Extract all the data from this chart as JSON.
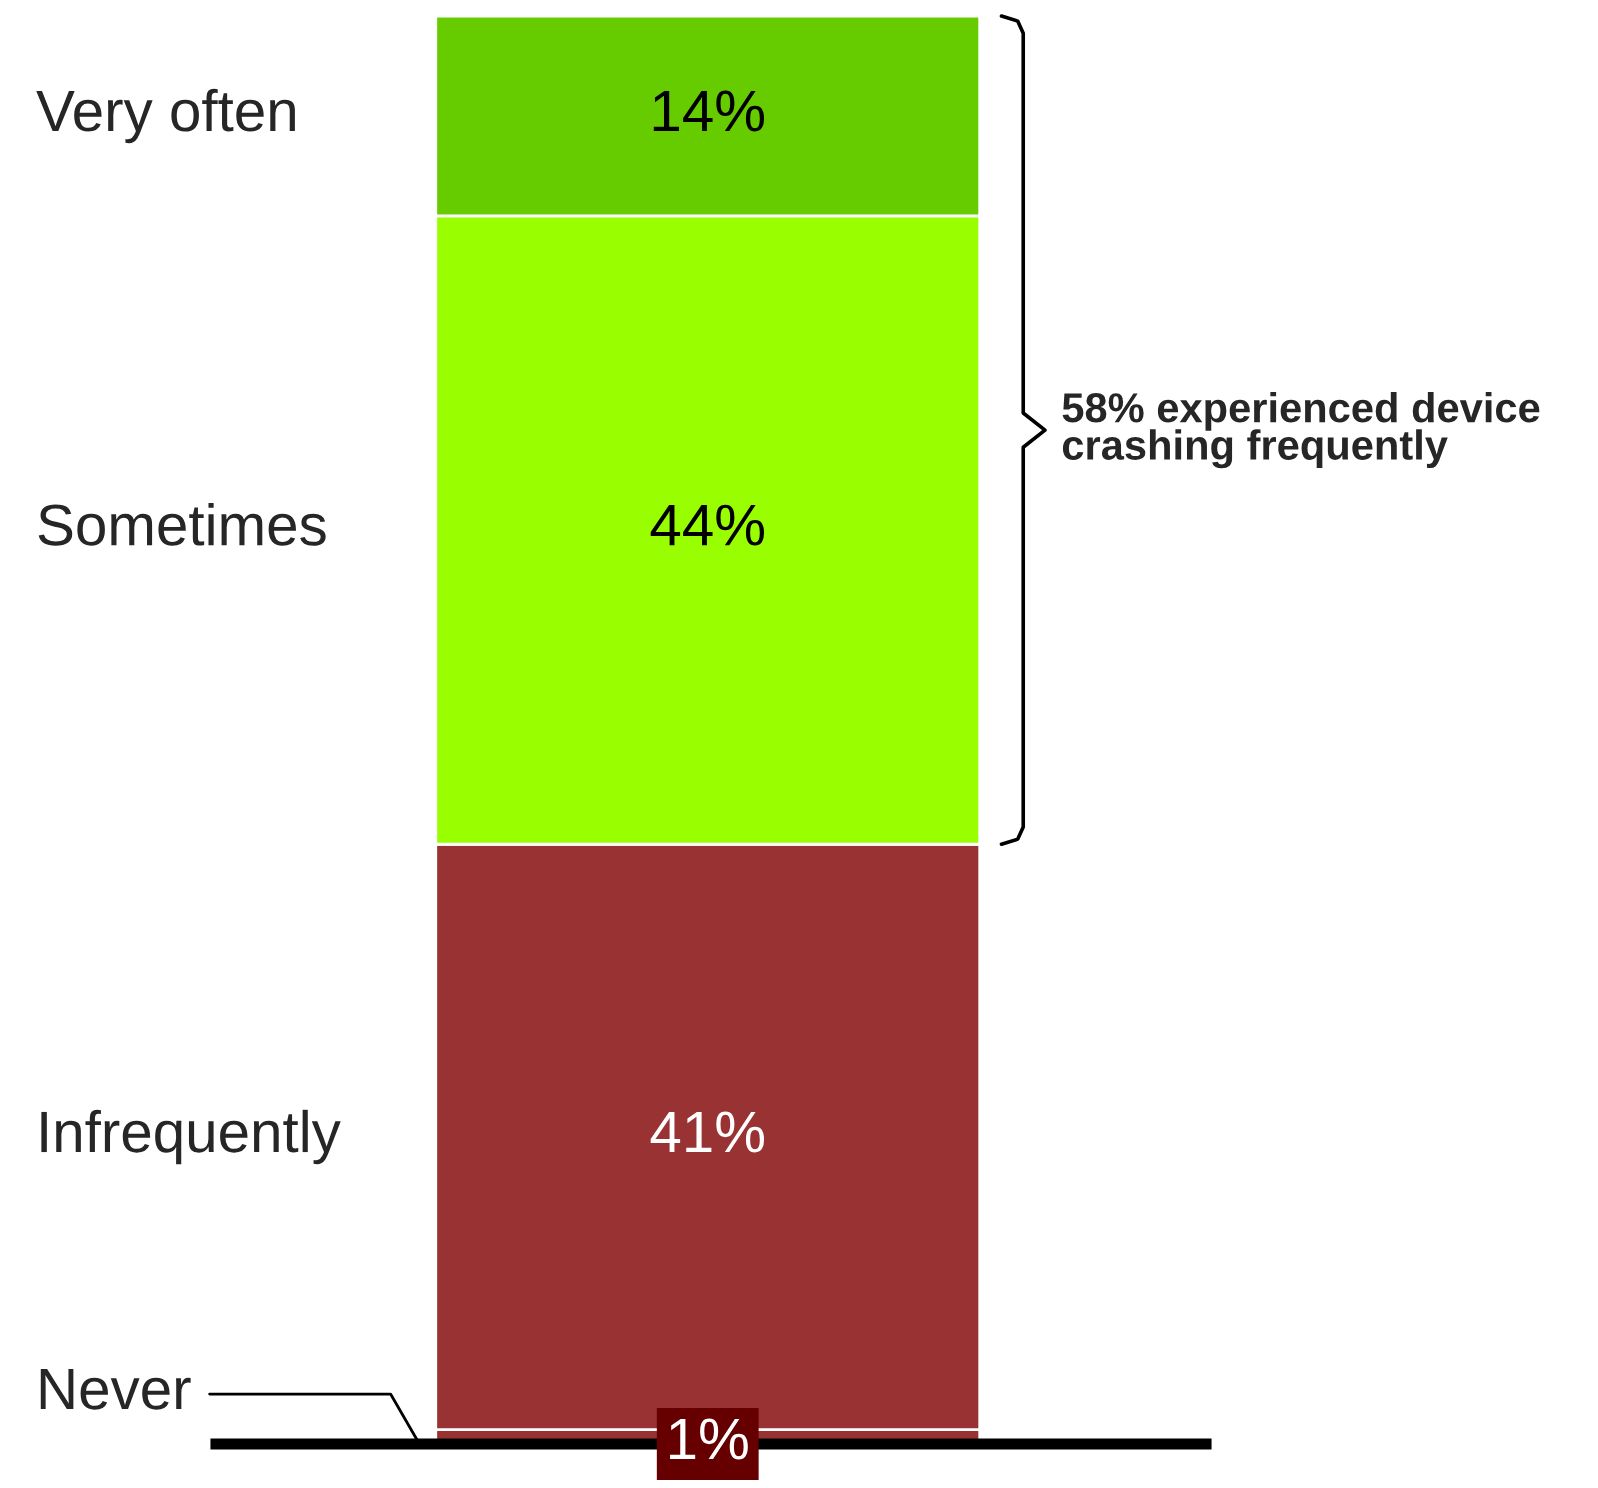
{
  "chart_data": {
    "type": "bar",
    "stacked": true,
    "categories": [
      null
    ],
    "series": [
      {
        "name": "Never",
        "color": "#993333",
        "values": [
          1
        ],
        "value_labels": [
          "1%"
        ]
      },
      {
        "name": "Infrequently",
        "color": "#993333",
        "values": [
          41
        ],
        "value_labels": [
          "41%"
        ]
      },
      {
        "name": "Sometimes",
        "color": "#99ff00",
        "values": [
          44
        ],
        "value_labels": [
          "44%"
        ]
      },
      {
        "name": "Very often",
        "color": "#66cc00",
        "values": [
          14
        ],
        "value_labels": [
          "14%"
        ]
      }
    ],
    "annotations": [
      "58% experienced device crashing frequently"
    ]
  }
}
